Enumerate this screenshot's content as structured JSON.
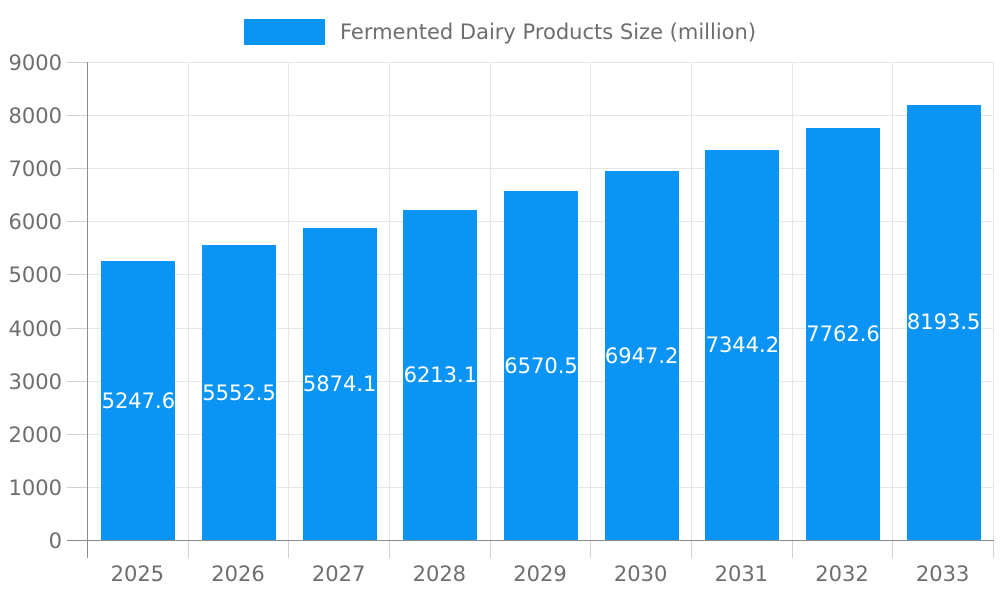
{
  "legend": {
    "label": "Fermented Dairy Products Size (million)"
  },
  "chart_data": {
    "type": "bar",
    "title": "Fermented Dairy Products Size (million)",
    "series_name": "Fermented Dairy Products Size (million)",
    "categories": [
      "2025",
      "2026",
      "2027",
      "2028",
      "2029",
      "2030",
      "2031",
      "2032",
      "2033"
    ],
    "values": [
      5247.6,
      5552.5,
      5874.1,
      6213.1,
      6570.5,
      6947.2,
      7344.2,
      7762.6,
      8193.5
    ],
    "value_labels": [
      "5247.6",
      "5552.5",
      "5874.1",
      "6213.1",
      "6570.5",
      "6947.2",
      "7344.2",
      "7762.6",
      "8193.5"
    ],
    "ylim": [
      0,
      9000
    ],
    "ytick_step": 1000,
    "yticks": [
      0,
      1000,
      2000,
      3000,
      4000,
      5000,
      6000,
      7000,
      8000,
      9000
    ],
    "grid": true,
    "legend_position": "top",
    "colors": {
      "bar": "#0a94f5",
      "value_label": "#ffffff",
      "axis_text": "#6e6e6e",
      "gridline": "#e6e6e6",
      "axis_line": "#8c8c8c",
      "tick": "#d2d2d2",
      "background": "#ffffff"
    }
  }
}
